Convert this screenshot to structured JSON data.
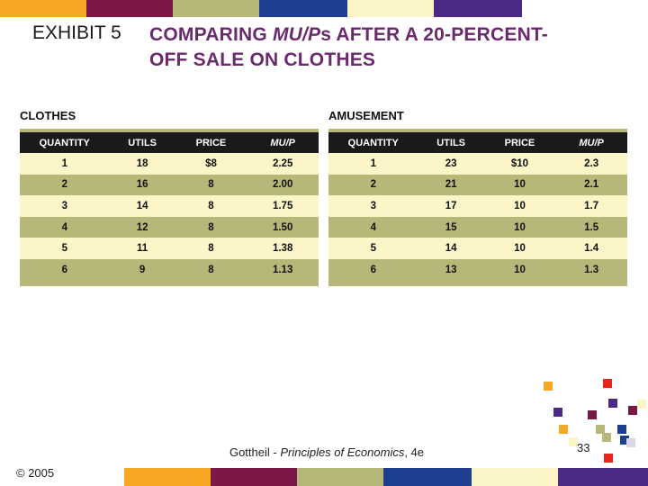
{
  "title_prefix": "EXHIBIT 5",
  "title_line1_a": "COMPARING ",
  "title_line1_italic": "MU/P",
  "title_line1_b": "s AFTER A 20-PERCENT-",
  "title_line2": "OFF SALE ON CLOTHES",
  "clothes": {
    "label": "CLOTHES",
    "headers": [
      "QUANTITY",
      "UTILS",
      "PRICE",
      "MU/P"
    ],
    "rows": [
      [
        "1",
        "18",
        "$8",
        "2.25"
      ],
      [
        "2",
        "16",
        "8",
        "2.00"
      ],
      [
        "3",
        "14",
        "8",
        "1.75"
      ],
      [
        "4",
        "12",
        "8",
        "1.50"
      ],
      [
        "5",
        "11",
        "8",
        "1.38"
      ],
      [
        "6",
        "9",
        "8",
        "1.13"
      ]
    ]
  },
  "amusement": {
    "label": "AMUSEMENT",
    "headers": [
      "QUANTITY",
      "UTILS",
      "PRICE",
      "MU/P"
    ],
    "rows": [
      [
        "1",
        "23",
        "$10",
        "2.3"
      ],
      [
        "2",
        "21",
        "10",
        "2.1"
      ],
      [
        "3",
        "17",
        "10",
        "1.7"
      ],
      [
        "4",
        "15",
        "10",
        "1.5"
      ],
      [
        "5",
        "14",
        "10",
        "1.4"
      ],
      [
        "6",
        "13",
        "10",
        "1.3"
      ]
    ]
  },
  "footer": {
    "copyright": "© 2005",
    "citation_author": "Gottheil - ",
    "citation_title": "Principles of Economics",
    "citation_edition": ", 4e",
    "page_number": "33"
  },
  "colors": {
    "purple_title": "#6b2a6e",
    "orange": "#f5a623",
    "maroon": "#7a1747",
    "olive": "#b8b77a",
    "navy": "#1e3f8f",
    "cream": "#fbf5c7",
    "violet": "#4b2a86",
    "red": "#e8261c"
  }
}
